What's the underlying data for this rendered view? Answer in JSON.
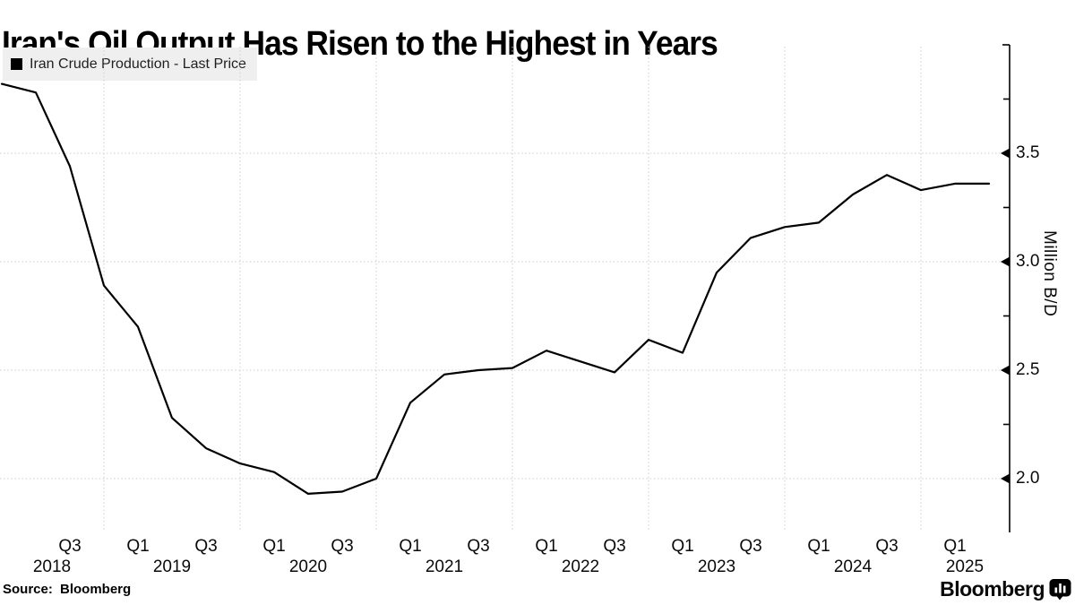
{
  "title": "Iran's Oil Output Has Risen to the Highest in Years",
  "legend": {
    "marker_color": "#000000",
    "label": "Iran Crude Production - Last Price"
  },
  "source_text": "Source: Bloomberg",
  "brand": {
    "wordmark": "Bloomberg"
  },
  "y_axis": {
    "label": "Million B/D",
    "side": "right",
    "range": [
      1.75,
      4.0
    ],
    "ticks": [
      {
        "label": "3.5",
        "value": 3.5
      },
      {
        "label": "3.0",
        "value": 3.0
      },
      {
        "label": "2.5",
        "value": 2.5
      },
      {
        "label": "2.0",
        "value": 2.0
      }
    ],
    "minor_tick_values": [
      3.75,
      3.25,
      2.75,
      2.25
    ]
  },
  "x_axis": {
    "quarter_tick_labels": [
      "Q3",
      "Q1",
      "Q3",
      "Q1",
      "Q3",
      "Q1",
      "Q3",
      "Q1",
      "Q3",
      "Q1",
      "Q3",
      "Q1",
      "Q3",
      "Q1"
    ],
    "year_labels": [
      "2018",
      "2019",
      "2020",
      "2021",
      "2022",
      "2023",
      "2024",
      "2025"
    ]
  },
  "chart_data": {
    "type": "line",
    "title": "Iran's Oil Output Has Risen to the Highest in Years",
    "ylabel": "Million B/D",
    "ylim": [
      1.75,
      4.0
    ],
    "grid": true,
    "legend_position": "top-left",
    "x": [
      "Q1 2018",
      "Q2 2018",
      "Q3 2018",
      "Q4 2018",
      "Q1 2019",
      "Q2 2019",
      "Q3 2019",
      "Q4 2019",
      "Q1 2020",
      "Q2 2020",
      "Q3 2020",
      "Q4 2020",
      "Q1 2021",
      "Q2 2021",
      "Q3 2021",
      "Q4 2021",
      "Q1 2022",
      "Q2 2022",
      "Q3 2022",
      "Q4 2022",
      "Q1 2023",
      "Q2 2023",
      "Q3 2023",
      "Q4 2023",
      "Q1 2024",
      "Q2 2024",
      "Q3 2024",
      "Q4 2024",
      "Q1 2025",
      "Q2 2025"
    ],
    "series": [
      {
        "name": "Iran Crude Production - Last Price",
        "color": "#000000",
        "values": [
          3.82,
          3.78,
          3.44,
          2.89,
          2.7,
          2.28,
          2.14,
          2.07,
          2.03,
          1.93,
          1.94,
          2.0,
          2.35,
          2.48,
          2.5,
          2.51,
          2.59,
          2.54,
          2.49,
          2.64,
          2.58,
          2.95,
          3.11,
          3.16,
          3.18,
          3.31,
          3.4,
          3.33,
          3.36,
          3.36
        ]
      }
    ]
  },
  "colors": {
    "background": "#ffffff",
    "line": "#000000",
    "grid": "#cccccc",
    "legend_bg": "#efefef",
    "text": "#000000"
  }
}
